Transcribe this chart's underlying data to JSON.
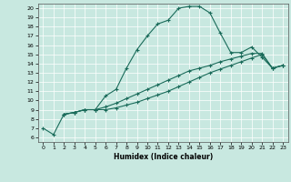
{
  "xlabel": "Humidex (Indice chaleur)",
  "xlim": [
    -0.5,
    23.5
  ],
  "ylim": [
    5.5,
    20.5
  ],
  "xticks": [
    0,
    1,
    2,
    3,
    4,
    5,
    6,
    7,
    8,
    9,
    10,
    11,
    12,
    13,
    14,
    15,
    16,
    17,
    18,
    19,
    20,
    21,
    22,
    23
  ],
  "yticks": [
    6,
    7,
    8,
    9,
    10,
    11,
    12,
    13,
    14,
    15,
    16,
    17,
    18,
    19,
    20
  ],
  "bg_color": "#c8e8e0",
  "line_color": "#1a6b5a",
  "line1_x": [
    0,
    1,
    2,
    3,
    4,
    5,
    6,
    7,
    8,
    9,
    10,
    11,
    12,
    13,
    14,
    15,
    16,
    17,
    18,
    19,
    20,
    21,
    22,
    23
  ],
  "line1_y": [
    7.0,
    6.3,
    8.5,
    8.7,
    9.0,
    9.0,
    10.5,
    11.2,
    13.5,
    15.5,
    17.0,
    18.3,
    18.7,
    20.0,
    20.2,
    20.2,
    19.5,
    17.3,
    15.2,
    15.2,
    15.8,
    14.7,
    13.5,
    13.8
  ],
  "line2_x": [
    2,
    3,
    4,
    5,
    6,
    7,
    8,
    9,
    10,
    11,
    12,
    13,
    14,
    15,
    16,
    17,
    18,
    19,
    20,
    21,
    22,
    23
  ],
  "line2_y": [
    8.5,
    8.7,
    9.0,
    9.0,
    9.3,
    9.7,
    10.2,
    10.7,
    11.2,
    11.7,
    12.2,
    12.7,
    13.2,
    13.5,
    13.8,
    14.2,
    14.5,
    14.8,
    15.1,
    15.1,
    13.5,
    13.8
  ],
  "line3_x": [
    2,
    3,
    4,
    5,
    6,
    7,
    8,
    9,
    10,
    11,
    12,
    13,
    14,
    15,
    16,
    17,
    18,
    19,
    20,
    21,
    22,
    23
  ],
  "line3_y": [
    8.5,
    8.7,
    9.0,
    9.0,
    9.0,
    9.2,
    9.5,
    9.8,
    10.2,
    10.6,
    11.0,
    11.5,
    12.0,
    12.5,
    13.0,
    13.4,
    13.8,
    14.2,
    14.6,
    15.0,
    13.5,
    13.8
  ]
}
